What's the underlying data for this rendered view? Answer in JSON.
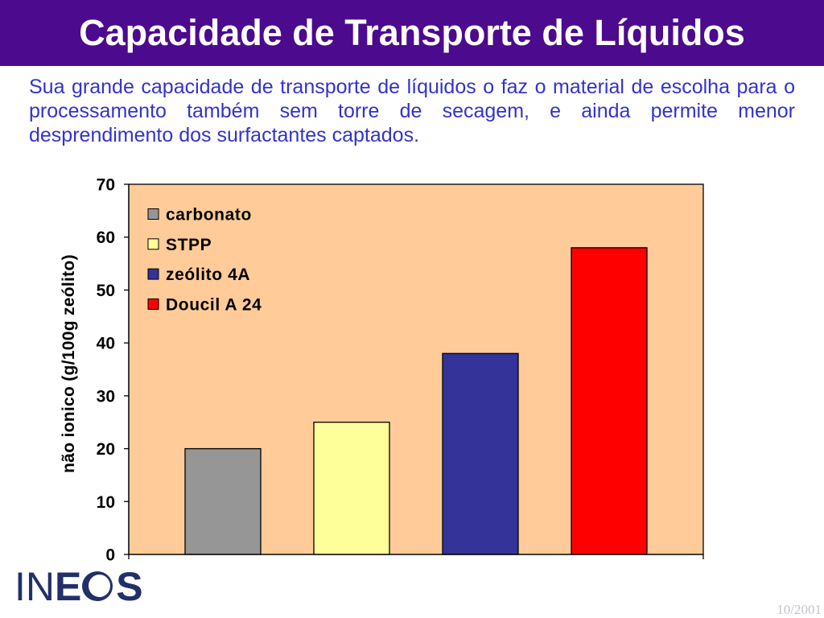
{
  "slide": {
    "title": "Capacidade de Transporte de Líquidos",
    "intro_lines": [
      "Sua grande capacidade de transporte de líquidos o faz o material de escolha para o",
      "processamento também sem torre de secagem, e ainda permite menor",
      "desprendimento dos surfactantes captados."
    ],
    "date": "10/2001",
    "colors": {
      "header_bg": "#4C0A8E",
      "title_text": "#FFFFFF",
      "body_text": "#3333CC",
      "date_text": "#C3C3D6"
    }
  },
  "logo": {
    "text": "INEOS",
    "color": "#22306A"
  },
  "chart_data": {
    "type": "bar",
    "ylabel": "não ionico (g/100g zeólito)",
    "ylim": [
      0,
      70
    ],
    "yticks": [
      0,
      10,
      20,
      30,
      40,
      50,
      60,
      70
    ],
    "grid": false,
    "legend": "top-left",
    "plot_background": "#FFCC99",
    "series": [
      {
        "name": "carbonato",
        "values": [
          20
        ],
        "color": "#969696"
      },
      {
        "name": "STPP",
        "values": [
          25
        ],
        "color": "#FFFF99"
      },
      {
        "name": "zeólito 4A",
        "values": [
          38
        ],
        "color": "#333399"
      },
      {
        "name": "Doucil A 24",
        "values": [
          58
        ],
        "color": "#FF0000"
      }
    ]
  }
}
